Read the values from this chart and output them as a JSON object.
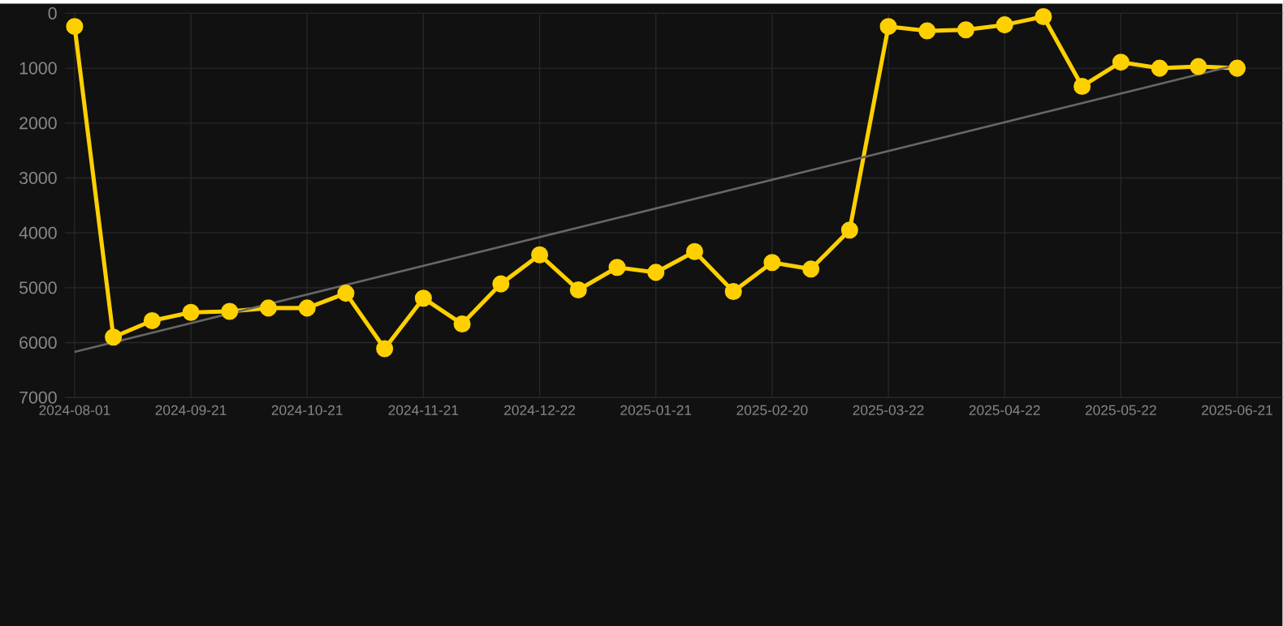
{
  "chart_data": {
    "type": "line",
    "categories": [
      "2024-08-01",
      null,
      null,
      "2024-09-21",
      null,
      null,
      "2024-10-21",
      null,
      null,
      "2024-11-21",
      null,
      null,
      "2024-12-22",
      null,
      null,
      "2025-01-21",
      null,
      null,
      "2025-02-20",
      null,
      null,
      "2025-03-22",
      null,
      null,
      "2025-04-22",
      null,
      null,
      "2025-05-22",
      null,
      null,
      "2025-06-21"
    ],
    "series": [
      {
        "color": "#ffd000",
        "values": [
          240,
          5900,
          5600,
          5450,
          5430,
          5370,
          5370,
          5100,
          6110,
          5190,
          5660,
          4930,
          4400,
          5040,
          4630,
          4720,
          4340,
          5070,
          4540,
          4660,
          3950,
          240,
          320,
          300,
          210,
          60,
          1330,
          890,
          1000,
          970,
          1000
        ]
      },
      {
        "type": "line",
        "color": "#666666",
        "marker": "none",
        "values": [
          6170,
          null,
          null,
          null,
          null,
          null,
          null,
          null,
          null,
          null,
          null,
          null,
          null,
          null,
          null,
          null,
          null,
          null,
          null,
          null,
          null,
          null,
          null,
          null,
          null,
          null,
          null,
          null,
          null,
          null,
          940
        ]
      }
    ],
    "ylim": [
      7000,
      0
    ],
    "yticks": [
      0,
      1000,
      2000,
      3000,
      4000,
      5000,
      6000,
      7000
    ],
    "grid": true,
    "marker": "circle",
    "line_style": "solid",
    "legend": false
  }
}
